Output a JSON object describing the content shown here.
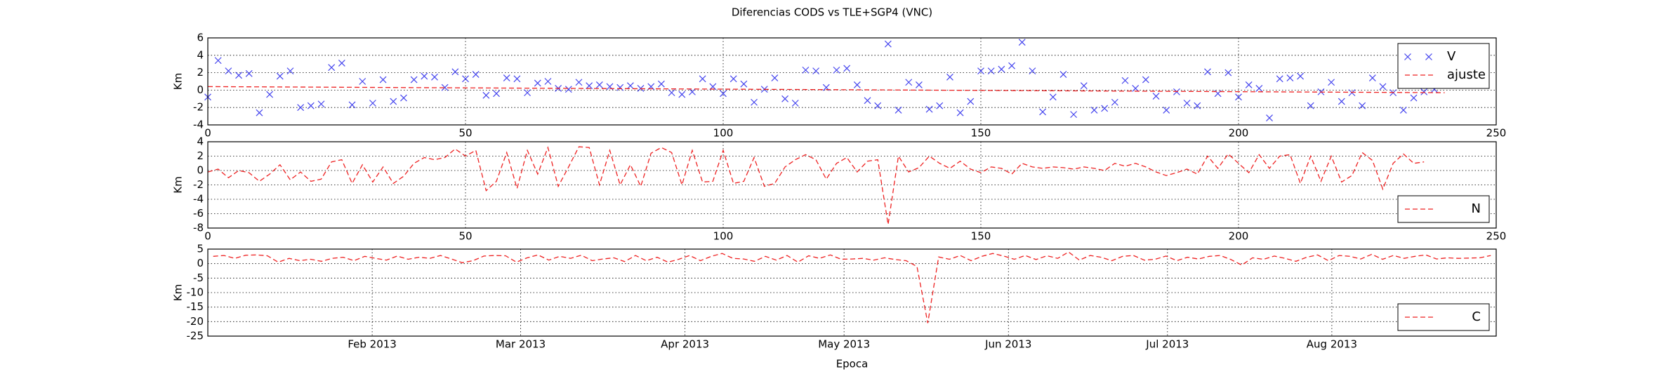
{
  "chart_data": [
    {
      "type": "scatter",
      "title": "Diferencias CODS vs TLE+SGP4 (VNC)",
      "ylabel": "Km",
      "xlim": [
        0,
        250
      ],
      "xticks": [
        0,
        50,
        100,
        150,
        200,
        250
      ],
      "ylim": [
        -4,
        6
      ],
      "yticks": [
        -4,
        -2,
        0,
        2,
        4,
        6
      ],
      "grid": true,
      "legend": "upper right",
      "series": [
        {
          "name": "V",
          "color": "#4444ee",
          "marker": "x",
          "x": [
            0,
            2,
            4,
            6,
            8,
            10,
            12,
            14,
            16,
            18,
            20,
            22,
            24,
            26,
            28,
            30,
            32,
            34,
            36,
            38,
            40,
            42,
            44,
            46,
            48,
            50,
            52,
            54,
            56,
            58,
            60,
            62,
            64,
            66,
            68,
            70,
            72,
            74,
            76,
            78,
            80,
            82,
            84,
            86,
            88,
            90,
            92,
            94,
            96,
            98,
            100,
            102,
            104,
            106,
            108,
            110,
            112,
            114,
            116,
            118,
            120,
            122,
            124,
            126,
            128,
            130,
            132,
            134,
            136,
            138,
            140,
            142,
            144,
            146,
            148,
            150,
            152,
            154,
            156,
            158,
            160,
            162,
            164,
            166,
            168,
            170,
            172,
            174,
            176,
            178,
            180,
            182,
            184,
            186,
            188,
            190,
            192,
            194,
            196,
            198,
            200,
            202,
            204,
            206,
            208,
            210,
            212,
            214,
            216,
            218,
            220,
            222,
            224,
            226,
            228,
            230,
            232,
            234,
            236,
            238
          ],
          "values": [
            -0.8,
            3.4,
            2.2,
            1.7,
            1.9,
            -2.6,
            -0.5,
            1.6,
            2.2,
            -2.0,
            -1.8,
            -1.6,
            2.6,
            3.1,
            -1.7,
            1.0,
            -1.5,
            1.2,
            -1.3,
            -0.9,
            1.2,
            1.6,
            1.5,
            0.3,
            2.1,
            1.3,
            1.8,
            -0.6,
            -0.4,
            1.4,
            1.3,
            -0.3,
            0.8,
            1.0,
            0.2,
            0.1,
            0.9,
            0.5,
            0.6,
            0.4,
            0.3,
            0.5,
            0.2,
            0.4,
            0.7,
            -0.3,
            -0.5,
            -0.2,
            1.3,
            0.4,
            -0.4,
            1.3,
            0.7,
            -1.4,
            0.1,
            1.4,
            -1.0,
            -1.5,
            2.3,
            2.2,
            0.3,
            2.3,
            2.5,
            0.6,
            -1.2,
            -1.8,
            5.3,
            -2.3,
            0.9,
            0.6,
            -2.2,
            -1.8,
            1.5,
            -2.6,
            -1.3,
            2.2,
            2.2,
            2.4,
            2.8,
            5.5,
            2.2,
            -2.5,
            -0.8,
            1.8,
            -2.8,
            0.5,
            -2.3,
            -2.1,
            -1.4,
            1.1,
            0.2,
            1.2,
            -0.7,
            -2.3,
            -0.2,
            -1.5,
            -1.8,
            2.1,
            -0.4,
            2.0,
            -0.8,
            0.6,
            0.2,
            -3.2,
            1.3,
            1.4,
            1.6,
            -1.8,
            -0.2,
            0.9,
            -1.3,
            -0.3,
            -1.8,
            1.4,
            0.4,
            -0.3,
            -2.3,
            -0.9,
            -0.2,
            0.1
          ]
        },
        {
          "name": "ajuste",
          "color": "#ee2222",
          "linestyle": "dashed",
          "x": [
            0,
            240
          ],
          "values": [
            0.4,
            -0.3
          ]
        }
      ]
    },
    {
      "type": "line",
      "ylabel": "Km",
      "xlim": [
        0,
        250
      ],
      "xticks": [
        0,
        50,
        100,
        150,
        200,
        250
      ],
      "ylim": [
        -8,
        4
      ],
      "yticks": [
        -8,
        -6,
        -4,
        -2,
        0,
        2,
        4
      ],
      "grid": true,
      "legend": "lower right",
      "series": [
        {
          "name": "N",
          "color": "#ee2222",
          "linestyle": "dashed",
          "x": [
            0,
            2,
            4,
            6,
            8,
            10,
            12,
            14,
            16,
            18,
            20,
            22,
            24,
            26,
            28,
            30,
            32,
            34,
            36,
            38,
            40,
            42,
            44,
            46,
            48,
            50,
            52,
            54,
            56,
            58,
            60,
            62,
            64,
            66,
            68,
            70,
            72,
            74,
            76,
            78,
            80,
            82,
            84,
            86,
            88,
            90,
            92,
            94,
            96,
            98,
            100,
            102,
            104,
            106,
            108,
            110,
            112,
            114,
            116,
            118,
            120,
            122,
            124,
            126,
            128,
            130,
            132,
            134,
            136,
            138,
            140,
            142,
            144,
            146,
            148,
            150,
            152,
            154,
            156,
            158,
            160,
            162,
            164,
            166,
            168,
            170,
            172,
            174,
            176,
            178,
            180,
            182,
            184,
            186,
            188,
            190,
            192,
            194,
            196,
            198,
            200,
            202,
            204,
            206,
            208,
            210,
            212,
            214,
            216,
            218,
            220,
            222,
            224,
            226,
            228,
            230,
            232,
            234,
            236
          ],
          "values": [
            -0.2,
            0.2,
            -1.0,
            0.0,
            -0.3,
            -1.5,
            -0.5,
            0.8,
            -1.3,
            -0.2,
            -1.5,
            -1.2,
            1.2,
            1.5,
            -1.8,
            0.8,
            -1.6,
            0.5,
            -1.8,
            -0.8,
            1.0,
            1.8,
            1.5,
            1.8,
            3.0,
            2.0,
            2.8,
            -2.8,
            -1.5,
            2.5,
            -2.5,
            2.8,
            -0.5,
            3.2,
            -2.2,
            0.5,
            3.3,
            3.2,
            -2.0,
            2.8,
            -2.0,
            0.8,
            -2.2,
            2.4,
            3.2,
            2.5,
            -2.0,
            2.8,
            -1.6,
            -1.5,
            2.8,
            -1.8,
            -1.5,
            1.8,
            -2.2,
            -1.8,
            0.5,
            1.5,
            2.2,
            1.5,
            -1.2,
            1.0,
            1.8,
            -0.2,
            1.3,
            1.5,
            -7.5,
            2.0,
            -0.2,
            0.4,
            2.0,
            1.0,
            0.3,
            1.3,
            0.2,
            -0.3,
            0.5,
            0.3,
            -0.5,
            1.0,
            0.5,
            0.3,
            0.5,
            0.4,
            0.2,
            0.5,
            0.3,
            0.0,
            1.0,
            0.6,
            1.0,
            0.5,
            -0.2,
            -0.7,
            -0.3,
            0.2,
            -0.5,
            2.0,
            0.3,
            2.3,
            1.0,
            -0.3,
            2.2,
            0.3,
            2.0,
            2.2,
            -1.8,
            2.0,
            -1.5,
            2.0,
            -1.6,
            -0.7,
            2.5,
            1.4,
            -2.6,
            1.0,
            2.3,
            1.0,
            1.2
          ]
        }
      ]
    },
    {
      "type": "line",
      "ylabel": "Km",
      "xlabel": "Epoca",
      "xlim": [
        "2013-01",
        "2013-09"
      ],
      "xticks": [
        {
          "value": "2013-02",
          "label": "Feb 2013"
        },
        {
          "value": "2013-03",
          "label": "Mar 2013"
        },
        {
          "value": "2013-04",
          "label": "Apr 2013"
        },
        {
          "value": "2013-05",
          "label": "May 2013"
        },
        {
          "value": "2013-06",
          "label": "Jun 2013"
        },
        {
          "value": "2013-07",
          "label": "Jul 2013"
        },
        {
          "value": "2013-08",
          "label": "Aug 2013"
        }
      ],
      "ylim": [
        -25,
        5
      ],
      "yticks": [
        -25,
        -20,
        -15,
        -10,
        -5,
        0,
        5
      ],
      "grid": true,
      "legend": "lower right",
      "series": [
        {
          "name": "C",
          "color": "#ee2222",
          "linestyle": "dashed",
          "values": [
            2.5,
            2.8,
            1.8,
            2.9,
            3.0,
            2.7,
            0.5,
            1.8,
            1.0,
            1.5,
            0.8,
            1.8,
            2.2,
            1.0,
            2.5,
            1.8,
            1.2,
            2.6,
            1.5,
            2.2,
            1.8,
            2.8,
            1.6,
            0.3,
            1.0,
            2.6,
            2.8,
            2.7,
            0.5,
            2.0,
            3.0,
            1.2,
            2.5,
            1.8,
            2.9,
            1.0,
            1.6,
            2.0,
            0.7,
            2.8,
            1.0,
            2.2,
            0.5,
            1.5,
            2.8,
            1.0,
            2.5,
            3.5,
            1.8,
            1.6,
            0.8,
            2.5,
            1.2,
            2.8,
            0.5,
            2.7,
            1.8,
            3.0,
            1.5,
            1.6,
            1.8,
            1.2,
            2.0,
            1.4,
            1.0,
            -1.0,
            -20.5,
            2.3,
            1.5,
            2.8,
            1.0,
            2.5,
            3.5,
            2.6,
            1.5,
            2.8,
            1.4,
            2.7,
            1.8,
            4.0,
            1.2,
            2.8,
            2.2,
            1.0,
            2.5,
            2.8,
            1.2,
            1.5,
            2.6,
            1.0,
            2.2,
            1.6,
            2.5,
            2.8,
            1.4,
            -0.5,
            2.0,
            1.5,
            2.6,
            1.8,
            0.8,
            2.2,
            3.0,
            1.0,
            2.8,
            2.5,
            1.6,
            3.2,
            1.5,
            2.8,
            1.8,
            2.5,
            3.0,
            1.6,
            2.0,
            1.8,
            1.9,
            2.0,
            2.8
          ]
        }
      ]
    }
  ]
}
